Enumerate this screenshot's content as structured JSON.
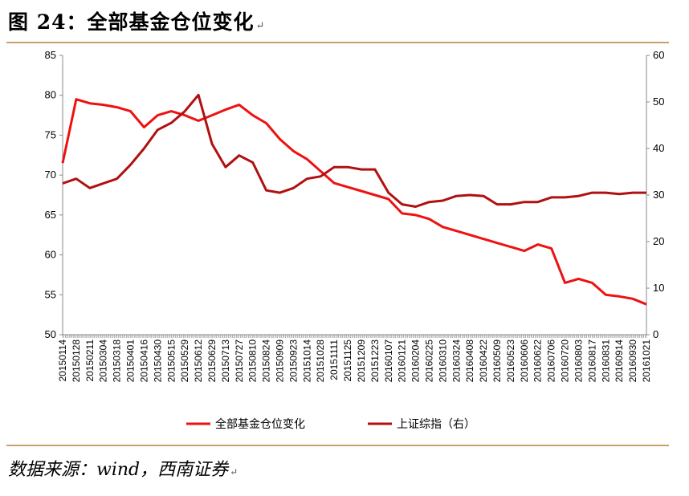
{
  "figure": {
    "title": "图 24：全部基金仓位变化",
    "source": "数据来源：wind，西南证券"
  },
  "colors": {
    "fund_position": "#ee1111",
    "sse_index": "#b01010",
    "rule": "#c8a16a",
    "axis": "#888888"
  },
  "chart_data": {
    "type": "line",
    "title": "",
    "xlabel": "",
    "ylabel": "",
    "y_left_lim": [
      50,
      85
    ],
    "y_left_ticks": [
      50,
      55,
      60,
      65,
      70,
      75,
      80,
      85
    ],
    "y_right_lim": [
      0,
      60
    ],
    "y_right_ticks": [
      0,
      10,
      20,
      30,
      40,
      50,
      60
    ],
    "grid": false,
    "legend_position": "bottom",
    "x_tick_labels": [
      "20150114",
      "20150128",
      "20150211",
      "20150304",
      "20150318",
      "20150401",
      "20150416",
      "20150430",
      "20150515",
      "20150529",
      "20150612",
      "20150629",
      "20150713",
      "20150727",
      "20150810",
      "20150824",
      "20150909",
      "20150923",
      "20151014",
      "20151028",
      "20151111",
      "20151125",
      "20151209",
      "20151223",
      "20160107",
      "20160121",
      "20160204",
      "20160225",
      "20160310",
      "20160324",
      "20160408",
      "20160422",
      "20160509",
      "20160523",
      "20160606",
      "20160622",
      "20160706",
      "20160720",
      "20160803",
      "20160817",
      "20160831",
      "20160914",
      "20160930",
      "20161021"
    ],
    "series": [
      {
        "name": "全部基金仓位变化",
        "axis": "left",
        "values": [
          71.5,
          79.5,
          79.0,
          78.8,
          78.5,
          78.0,
          76.0,
          77.5,
          78.0,
          77.5,
          76.8,
          77.5,
          78.2,
          78.8,
          77.5,
          76.5,
          74.5,
          73.0,
          72.0,
          70.5,
          69.0,
          68.5,
          68.0,
          67.5,
          67.0,
          65.2,
          65.0,
          64.5,
          63.5,
          63.0,
          62.5,
          62.0,
          61.5,
          61.0,
          60.5,
          61.3,
          60.8,
          56.5,
          57.0,
          56.5,
          55.0,
          54.8,
          54.5,
          53.8
        ]
      },
      {
        "name": "上证综指（右）",
        "axis": "right",
        "values": [
          32.5,
          33.5,
          31.5,
          32.5,
          33.5,
          36.5,
          40.0,
          44.0,
          45.5,
          48.0,
          51.5,
          41.0,
          36.0,
          38.5,
          37.0,
          31.0,
          30.5,
          31.5,
          33.5,
          34.0,
          36.0,
          36.0,
          35.5,
          35.5,
          30.5,
          28.0,
          27.5,
          28.5,
          28.8,
          29.8,
          30.0,
          29.8,
          28.0,
          28.0,
          28.5,
          28.5,
          29.5,
          29.5,
          29.8,
          30.5,
          30.5,
          30.2,
          30.5,
          30.5
        ]
      }
    ]
  }
}
